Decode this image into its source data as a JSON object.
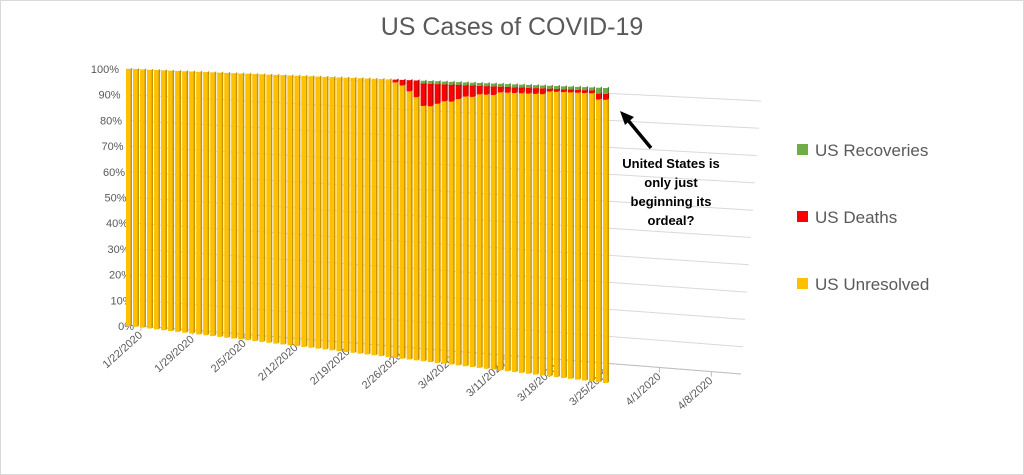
{
  "chart_data": {
    "type": "bar",
    "stacked": "100%",
    "title": "US Cases of COVID-19",
    "ylim": [
      0,
      100
    ],
    "yticks": [
      "0%",
      "10%",
      "20%",
      "30%",
      "40%",
      "50%",
      "60%",
      "70%",
      "80%",
      "90%",
      "100%"
    ],
    "x_start": "2020-01-22",
    "x_end": "2020-04-12",
    "data_last_date": "2020-03-30",
    "xticks": [
      "1/22/2020",
      "1/29/2020",
      "2/5/2020",
      "2/12/2020",
      "2/19/2020",
      "2/26/2020",
      "3/4/2020",
      "3/11/2020",
      "3/18/2020",
      "3/25/2020",
      "4/1/2020",
      "4/8/2020"
    ],
    "legend_position": "right",
    "series": [
      {
        "name": "US Recoveries",
        "color": "#70ad47",
        "values": [
          0,
          0,
          0,
          0,
          0,
          0,
          0,
          0,
          0,
          0,
          0,
          0,
          0,
          0,
          0,
          0,
          0,
          0,
          0,
          0,
          0,
          0,
          0,
          0,
          0,
          0,
          0,
          0,
          0,
          0,
          0,
          0,
          0,
          0,
          0,
          0,
          0,
          0,
          0,
          0,
          0,
          0,
          1,
          1,
          1,
          1,
          1,
          1,
          1,
          1,
          1,
          1,
          1,
          1,
          1,
          1,
          1,
          1,
          1,
          1,
          1,
          1,
          1,
          1,
          1,
          1,
          1,
          2,
          2
        ]
      },
      {
        "name": "US Deaths",
        "color": "#ff0000",
        "values": [
          0,
          0,
          0,
          0,
          0,
          0,
          0,
          0,
          0,
          0,
          0,
          0,
          0,
          0,
          0,
          0,
          0,
          0,
          0,
          0,
          0,
          0,
          0,
          0,
          0,
          0,
          0,
          0,
          0,
          0,
          0,
          0,
          0,
          0,
          0,
          0,
          0,
          0,
          1,
          2,
          4,
          6,
          8,
          8,
          7,
          6,
          6,
          5,
          4,
          4,
          3,
          3,
          3,
          2,
          2,
          2,
          2,
          2,
          2,
          2,
          1,
          1,
          1,
          1,
          1,
          1,
          1,
          2,
          2
        ]
      },
      {
        "name": "US Unresolved",
        "color": "#ffc000",
        "values": [
          100,
          100,
          100,
          100,
          100,
          100,
          100,
          100,
          100,
          100,
          100,
          100,
          100,
          100,
          100,
          100,
          100,
          100,
          100,
          100,
          100,
          100,
          100,
          100,
          100,
          100,
          100,
          100,
          100,
          100,
          100,
          100,
          100,
          100,
          100,
          100,
          100,
          100,
          99,
          98,
          96,
          94,
          91,
          91,
          92,
          93,
          93,
          94,
          95,
          95,
          96,
          96,
          96,
          97,
          97,
          97,
          97,
          97,
          97,
          97,
          98,
          98,
          98,
          98,
          98,
          98,
          98,
          96,
          96
        ]
      }
    ]
  },
  "annotation": {
    "line1": "United States is",
    "line2": "only just",
    "line3": "beginning its",
    "line4": "ordeal?"
  }
}
